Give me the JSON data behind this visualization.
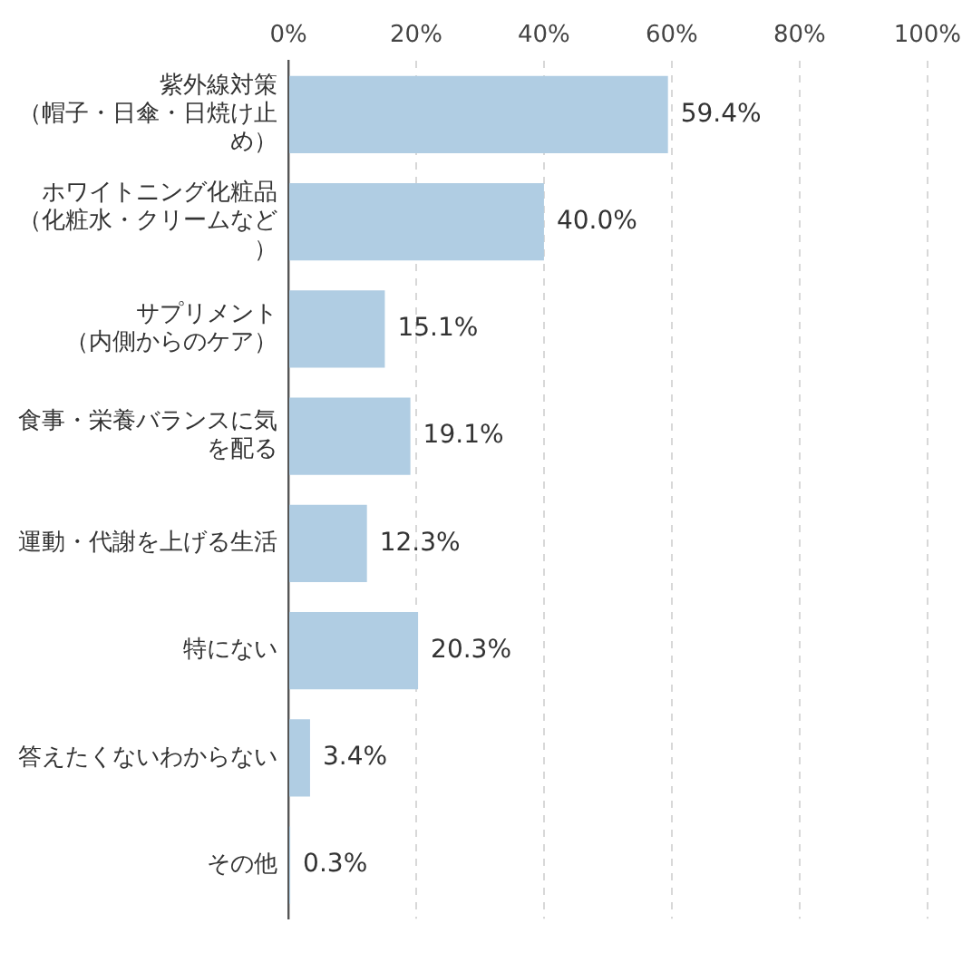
{
  "chart_data": {
    "type": "bar",
    "orientation": "horizontal",
    "categories": [
      "紫外線対策（帽子・日傘・日焼け止め）",
      "ホワイトニング化粧品（化粧水・クリームなど）",
      "サプリメント（内側からのケア）",
      "食事・栄養バランスに気を配る",
      "運動・代謝を上げる生活",
      "特にない",
      "答えたくないわからない",
      "その他"
    ],
    "values": [
      59.4,
      40.0,
      15.1,
      19.1,
      12.3,
      20.3,
      3.4,
      0.3
    ],
    "value_labels": [
      "59.4%",
      "40.0%",
      "15.1%",
      "19.1%",
      "12.3%",
      "20.3%",
      "3.4%",
      "0.3%"
    ],
    "color": "#b0cde3",
    "xlim": [
      0,
      100
    ],
    "xticks": [
      {
        "value": 0,
        "label": "0%"
      },
      {
        "value": 20,
        "label": "20%"
      },
      {
        "value": 40,
        "label": "40%"
      },
      {
        "value": 60,
        "label": "60%"
      },
      {
        "value": 80,
        "label": "80%"
      },
      {
        "value": 100,
        "label": "100%"
      }
    ],
    "grid": "x"
  }
}
